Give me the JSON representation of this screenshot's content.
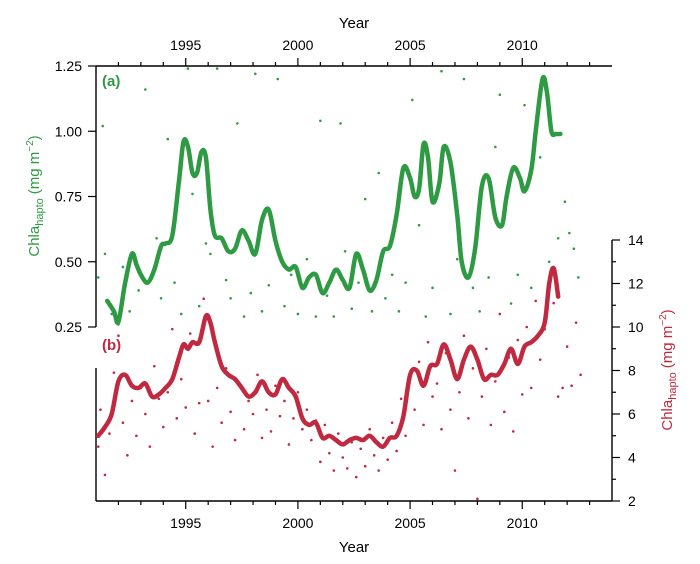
{
  "chart_data": [
    {
      "panel": "(a)",
      "type": "line",
      "title": "",
      "xlabel": "Year",
      "ylabel_main": "Chla",
      "ylabel_sub": "hapto",
      "ylabel_units": "(mg m",
      "ylabel_exp": "−2",
      "ylabel_close": ")",
      "x_axis_position": "top",
      "y_axis_position": "left",
      "color": "#2e9b44",
      "xlim": [
        1991,
        2014
      ],
      "ylim": [
        0.1,
        1.25
      ],
      "xticks": [
        1995,
        2000,
        2005,
        2010
      ],
      "yticks": [
        0.25,
        0.5,
        0.75,
        1.0,
        1.25
      ],
      "ytick_labels": [
        "0.25",
        "0.50",
        "0.75",
        "1.00",
        "1.25"
      ],
      "smoothed_series": {
        "x": [
          1991.5,
          1991.8,
          1992.0,
          1992.3,
          1992.6,
          1992.8,
          1993.0,
          1993.3,
          1993.6,
          1993.9,
          1994.1,
          1994.4,
          1994.7,
          1994.9,
          1995.1,
          1995.3,
          1995.5,
          1995.7,
          1995.9,
          1996.1,
          1996.3,
          1996.6,
          1996.9,
          1997.2,
          1997.5,
          1997.8,
          1998.1,
          1998.4,
          1998.7,
          1999.0,
          1999.3,
          1999.6,
          1999.9,
          2000.2,
          2000.5,
          2000.8,
          2001.1,
          2001.4,
          2001.7,
          2002.0,
          2002.3,
          2002.6,
          2002.9,
          2003.2,
          2003.5,
          2003.8,
          2004.1,
          2004.4,
          2004.7,
          2005.0,
          2005.2,
          2005.4,
          2005.6,
          2005.8,
          2006.0,
          2006.3,
          2006.5,
          2006.8,
          2007.1,
          2007.3,
          2007.6,
          2007.9,
          2008.2,
          2008.5,
          2008.8,
          2009.1,
          2009.3,
          2009.6,
          2009.9,
          2010.1,
          2010.4,
          2010.6,
          2010.9,
          2011.1,
          2011.3,
          2011.5,
          2011.7
        ],
        "y": [
          0.35,
          0.31,
          0.27,
          0.42,
          0.53,
          0.49,
          0.45,
          0.42,
          0.47,
          0.56,
          0.57,
          0.6,
          0.81,
          0.96,
          0.94,
          0.84,
          0.84,
          0.92,
          0.9,
          0.7,
          0.6,
          0.59,
          0.54,
          0.55,
          0.62,
          0.58,
          0.53,
          0.66,
          0.7,
          0.58,
          0.5,
          0.47,
          0.48,
          0.4,
          0.44,
          0.45,
          0.38,
          0.42,
          0.47,
          0.43,
          0.4,
          0.53,
          0.47,
          0.39,
          0.43,
          0.54,
          0.56,
          0.68,
          0.86,
          0.82,
          0.75,
          0.78,
          0.95,
          0.9,
          0.73,
          0.8,
          0.94,
          0.88,
          0.68,
          0.5,
          0.44,
          0.55,
          0.79,
          0.82,
          0.67,
          0.64,
          0.75,
          0.86,
          0.82,
          0.77,
          0.85,
          1.0,
          1.2,
          1.15,
          1.0,
          0.99,
          0.99
        ]
      },
      "scatter_points": [
        [
          1991.1,
          0.44
        ],
        [
          1991.3,
          1.02
        ],
        [
          1991.4,
          0.53
        ],
        [
          1991.7,
          0.3
        ],
        [
          1992.0,
          0.26
        ],
        [
          1992.2,
          0.48
        ],
        [
          1992.5,
          0.31
        ],
        [
          1992.9,
          0.39
        ],
        [
          1993.2,
          1.16
        ],
        [
          1993.4,
          0.43
        ],
        [
          1993.7,
          0.59
        ],
        [
          1993.9,
          0.36
        ],
        [
          1994.2,
          0.97
        ],
        [
          1994.5,
          0.42
        ],
        [
          1994.8,
          0.3
        ],
        [
          1995.1,
          1.24
        ],
        [
          1995.3,
          0.76
        ],
        [
          1995.6,
          0.33
        ],
        [
          1995.9,
          0.57
        ],
        [
          1996.1,
          0.53
        ],
        [
          1996.4,
          1.24
        ],
        [
          1996.8,
          0.43
        ],
        [
          1997.0,
          0.36
        ],
        [
          1997.3,
          1.03
        ],
        [
          1997.6,
          0.29
        ],
        [
          1997.9,
          0.38
        ],
        [
          1998.1,
          1.22
        ],
        [
          1998.4,
          0.31
        ],
        [
          1998.7,
          0.41
        ],
        [
          1999.1,
          1.2
        ],
        [
          1999.4,
          0.33
        ],
        [
          1999.7,
          0.45
        ],
        [
          2000.0,
          0.3
        ],
        [
          2000.4,
          0.51
        ],
        [
          2000.8,
          0.29
        ],
        [
          2001.0,
          1.04
        ],
        [
          2001.3,
          0.37
        ],
        [
          2001.6,
          0.29
        ],
        [
          2001.9,
          1.03
        ],
        [
          2002.1,
          0.54
        ],
        [
          2002.4,
          0.32
        ],
        [
          2002.7,
          0.42
        ],
        [
          2003.0,
          0.74
        ],
        [
          2003.3,
          0.31
        ],
        [
          2003.6,
          0.84
        ],
        [
          2003.9,
          0.36
        ],
        [
          2004.2,
          0.45
        ],
        [
          2004.5,
          0.31
        ],
        [
          2004.8,
          0.42
        ],
        [
          2005.1,
          1.12
        ],
        [
          2005.4,
          0.64
        ],
        [
          2005.7,
          0.29
        ],
        [
          2006.0,
          0.4
        ],
        [
          2006.4,
          1.23
        ],
        [
          2006.8,
          0.3
        ],
        [
          2007.1,
          0.51
        ],
        [
          2007.4,
          1.2
        ],
        [
          2007.8,
          0.4
        ],
        [
          2008.1,
          0.31
        ],
        [
          2008.5,
          0.44
        ],
        [
          2008.8,
          0.94
        ],
        [
          2009.0,
          1.14
        ],
        [
          2009.5,
          0.34
        ],
        [
          2009.8,
          0.45
        ],
        [
          2010.1,
          1.1
        ],
        [
          2010.4,
          0.4
        ],
        [
          2010.8,
          0.9
        ],
        [
          2011.2,
          0.5
        ],
        [
          2011.6,
          0.59
        ],
        [
          2011.9,
          0.73
        ],
        [
          2012.1,
          0.61
        ],
        [
          2012.3,
          0.55
        ],
        [
          2012.5,
          0.44
        ]
      ]
    },
    {
      "panel": "(b)",
      "type": "line",
      "title": "",
      "xlabel": "Year",
      "ylabel_main": "Chla",
      "ylabel_sub": "hapto",
      "ylabel_units": "(mg m",
      "ylabel_exp": "−2",
      "ylabel_close": ")",
      "x_axis_position": "bottom",
      "y_axis_position": "right",
      "color": "#c0293f",
      "xlim": [
        1991,
        2014
      ],
      "ylim": [
        2,
        14
      ],
      "xticks": [
        1995,
        2000,
        2005,
        2010
      ],
      "yticks": [
        2,
        4,
        6,
        8,
        10,
        12,
        14
      ],
      "ytick_labels": [
        "2",
        "4",
        "6",
        "8",
        "10",
        "12",
        "14"
      ],
      "smoothed_series": {
        "x": [
          1991.1,
          1991.4,
          1991.7,
          1992.0,
          1992.3,
          1992.6,
          1992.9,
          1993.2,
          1993.5,
          1993.8,
          1994.1,
          1994.4,
          1994.7,
          1994.9,
          1995.1,
          1995.3,
          1995.6,
          1995.9,
          1996.1,
          1996.3,
          1996.6,
          1996.9,
          1997.2,
          1997.5,
          1997.8,
          1998.1,
          1998.4,
          1998.7,
          1999.0,
          1999.3,
          1999.6,
          1999.9,
          2000.2,
          2000.5,
          2000.8,
          2001.1,
          2001.4,
          2001.7,
          2002.0,
          2002.3,
          2002.6,
          2002.9,
          2003.2,
          2003.5,
          2003.8,
          2004.1,
          2004.4,
          2004.7,
          2005.0,
          2005.3,
          2005.6,
          2005.9,
          2006.2,
          2006.5,
          2006.8,
          2007.1,
          2007.4,
          2007.7,
          2008.0,
          2008.3,
          2008.6,
          2008.9,
          2009.2,
          2009.5,
          2009.8,
          2010.1,
          2010.4,
          2010.7,
          2011.0,
          2011.2,
          2011.4,
          2011.6
        ],
        "y": [
          5.0,
          5.4,
          6.0,
          7.5,
          7.8,
          7.3,
          7.2,
          7.4,
          6.8,
          6.9,
          7.2,
          7.6,
          8.6,
          9.2,
          9.0,
          9.3,
          9.3,
          10.5,
          10.2,
          9.3,
          8.2,
          7.8,
          7.6,
          7.2,
          6.8,
          7.0,
          7.5,
          7.0,
          6.9,
          7.6,
          7.2,
          6.8,
          5.8,
          5.5,
          5.6,
          4.9,
          5.0,
          4.8,
          4.6,
          4.8,
          4.9,
          4.8,
          5.0,
          4.7,
          4.5,
          4.9,
          5.0,
          5.9,
          7.8,
          8.0,
          7.3,
          8.2,
          8.3,
          9.2,
          8.5,
          7.6,
          8.5,
          9.1,
          8.5,
          7.6,
          7.8,
          7.8,
          8.3,
          9.0,
          8.3,
          9.1,
          9.3,
          9.6,
          10.2,
          12.0,
          12.7,
          11.4
        ]
      },
      "scatter_points": [
        [
          1991.1,
          4.5
        ],
        [
          1991.2,
          6.2
        ],
        [
          1991.4,
          3.2
        ],
        [
          1991.6,
          5.1
        ],
        [
          1991.8,
          7.9
        ],
        [
          1992.0,
          9.6
        ],
        [
          1992.2,
          5.6
        ],
        [
          1992.4,
          4.1
        ],
        [
          1992.6,
          6.6
        ],
        [
          1992.8,
          5.0
        ],
        [
          1993.0,
          7.2
        ],
        [
          1993.2,
          6.0
        ],
        [
          1993.4,
          4.5
        ],
        [
          1993.6,
          8.2
        ],
        [
          1993.8,
          6.7
        ],
        [
          1994.0,
          5.4
        ],
        [
          1994.2,
          7.0
        ],
        [
          1994.4,
          9.9
        ],
        [
          1994.6,
          5.8
        ],
        [
          1994.8,
          7.6
        ],
        [
          1995.0,
          6.3
        ],
        [
          1995.2,
          9.7
        ],
        [
          1995.4,
          5.1
        ],
        [
          1995.6,
          6.5
        ],
        [
          1995.8,
          11.3
        ],
        [
          1996.0,
          6.6
        ],
        [
          1996.2,
          4.5
        ],
        [
          1996.4,
          7.2
        ],
        [
          1996.6,
          5.6
        ],
        [
          1996.8,
          8.1
        ],
        [
          1997.0,
          6.1
        ],
        [
          1997.2,
          4.8
        ],
        [
          1997.4,
          7.4
        ],
        [
          1997.6,
          5.3
        ],
        [
          1997.8,
          6.6
        ],
        [
          1998.0,
          6.0
        ],
        [
          1998.2,
          7.8
        ],
        [
          1998.4,
          4.9
        ],
        [
          1998.6,
          6.2
        ],
        [
          1998.8,
          5.2
        ],
        [
          1999.0,
          7.3
        ],
        [
          1999.2,
          5.9
        ],
        [
          1999.4,
          6.6
        ],
        [
          1999.6,
          4.6
        ],
        [
          1999.8,
          5.8
        ],
        [
          2000.0,
          7.0
        ],
        [
          2000.2,
          5.3
        ],
        [
          2000.4,
          6.2
        ],
        [
          2000.6,
          4.8
        ],
        [
          2000.8,
          5.7
        ],
        [
          2001.0,
          3.8
        ],
        [
          2001.2,
          5.5
        ],
        [
          2001.4,
          4.2
        ],
        [
          2001.6,
          3.4
        ],
        [
          2001.8,
          5.1
        ],
        [
          2002.0,
          4.0
        ],
        [
          2002.2,
          3.5
        ],
        [
          2002.4,
          4.7
        ],
        [
          2002.6,
          3.1
        ],
        [
          2002.8,
          4.4
        ],
        [
          2003.0,
          3.6
        ],
        [
          2003.2,
          5.3
        ],
        [
          2003.4,
          4.1
        ],
        [
          2003.6,
          3.4
        ],
        [
          2003.8,
          4.9
        ],
        [
          2004.0,
          3.9
        ],
        [
          2004.2,
          5.6
        ],
        [
          2004.4,
          4.3
        ],
        [
          2004.6,
          6.7
        ],
        [
          2004.8,
          5.0
        ],
        [
          2005.0,
          7.6
        ],
        [
          2005.2,
          6.2
        ],
        [
          2005.4,
          8.4
        ],
        [
          2005.6,
          5.5
        ],
        [
          2005.8,
          9.3
        ],
        [
          2006.0,
          6.8
        ],
        [
          2006.2,
          7.4
        ],
        [
          2006.4,
          5.3
        ],
        [
          2006.6,
          8.8
        ],
        [
          2006.8,
          6.2
        ],
        [
          2007.0,
          3.4
        ],
        [
          2007.2,
          7.0
        ],
        [
          2007.4,
          9.6
        ],
        [
          2007.6,
          5.8
        ],
        [
          2007.8,
          8.1
        ],
        [
          2008.0,
          2.1
        ],
        [
          2008.2,
          6.8
        ],
        [
          2008.4,
          9.0
        ],
        [
          2008.6,
          5.5
        ],
        [
          2008.8,
          7.5
        ],
        [
          2009.0,
          10.6
        ],
        [
          2009.2,
          6.1
        ],
        [
          2009.4,
          8.6
        ],
        [
          2009.6,
          5.2
        ],
        [
          2009.8,
          9.4
        ],
        [
          2010.0,
          6.9
        ],
        [
          2010.2,
          10.0
        ],
        [
          2010.4,
          7.2
        ],
        [
          2010.6,
          11.2
        ],
        [
          2010.8,
          8.5
        ],
        [
          2011.0,
          9.9
        ],
        [
          2011.2,
          11.6
        ],
        [
          2011.4,
          11.1
        ],
        [
          2011.6,
          6.8
        ],
        [
          2011.8,
          7.2
        ],
        [
          2012.0,
          9.1
        ],
        [
          2012.2,
          7.3
        ],
        [
          2012.4,
          10.2
        ],
        [
          2012.6,
          7.8
        ]
      ]
    }
  ]
}
